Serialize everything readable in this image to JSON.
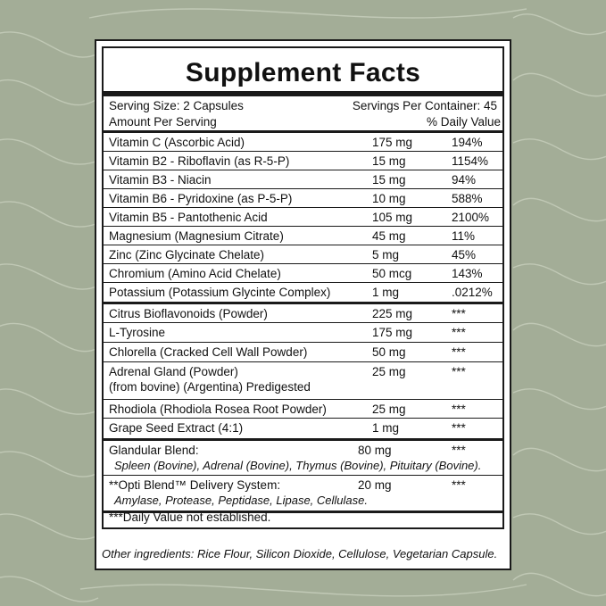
{
  "colors": {
    "background": "#a3ad97",
    "panel": "#ffffff",
    "lines": "#1a1a1a"
  },
  "label": {
    "title": "Supplement Facts",
    "serving_size": "Serving Size: 2 Capsules",
    "servings_per_container": "Servings Per Container: 45",
    "amount_per_serving": "Amount Per Serving",
    "daily_value": "% Daily Value",
    "rows": [
      {
        "name": "Vitamin C (Ascorbic Acid)",
        "amount": "175 mg",
        "dv": "194%"
      },
      {
        "name": "Vitamin B2 - Riboflavin (as R-5-P)",
        "amount": "15 mg",
        "dv": "1154%"
      },
      {
        "name": "Vitamin B3 - Niacin",
        "amount": "15 mg",
        "dv": "94%"
      },
      {
        "name": "Vitamin B6 - Pyridoxine (as P-5-P)",
        "amount": "10 mg",
        "dv": "588%"
      },
      {
        "name": "Vitamin B5 - Pantothenic Acid",
        "amount": "105 mg",
        "dv": "2100%"
      },
      {
        "name": "Magnesium (Magnesium Citrate)",
        "amount": "45 mg",
        "dv": "11%"
      },
      {
        "name": "Zinc (Zinc Glycinate Chelate)",
        "amount": "5 mg",
        "dv": "45%"
      },
      {
        "name": "Chromium (Amino Acid Chelate)",
        "amount": "50 mcg",
        "dv": "143%"
      },
      {
        "name": "Potassium (Potassium Glycinte Complex)",
        "amount": "1 mg",
        "dv": ".0212%"
      },
      {
        "name": "Citrus Bioflavonoids (Powder)",
        "amount": "225 mg",
        "dv": "***"
      },
      {
        "name": "L-Tyrosine",
        "amount": "175 mg",
        "dv": "***"
      },
      {
        "name": "Chlorella (Cracked Cell Wall Powder)",
        "amount": "50 mg",
        "dv": "***"
      },
      {
        "name": "Adrenal Gland (Powder)",
        "name2": "(from bovine) (Argentina) Predigested",
        "amount": "25 mg",
        "dv": "***"
      },
      {
        "name": "Rhodiola (Rhodiola Rosea Root Powder)",
        "amount": "25 mg",
        "dv": "***"
      },
      {
        "name": "Grape Seed Extract (4:1)",
        "amount": "1 mg",
        "dv": "***"
      }
    ],
    "glandular": {
      "name": "Glandular Blend:",
      "amount": "80 mg",
      "dv": "***",
      "detail": "Spleen (Bovine), Adrenal (Bovine), Thymus (Bovine), Pituitary (Bovine)."
    },
    "opti": {
      "name": "**Opti Blend™ Delivery System:",
      "amount": "20 mg",
      "dv": "***",
      "detail": "Amylase, Protease, Peptidase, Lipase, Cellulase."
    },
    "footnote": "***Daily Value not established.",
    "other_ingredients": "Other ingredients: Rice Flour, Silicon Dioxide, Cellulose, Vegetarian Capsule."
  }
}
